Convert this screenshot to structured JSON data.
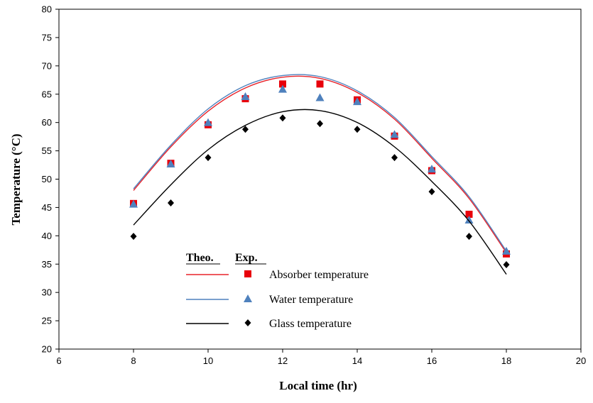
{
  "chart_data": {
    "type": "scatter",
    "title": "",
    "xlabel": "Local time (hr)",
    "ylabel": "Temperature (°C)",
    "xlim": [
      6,
      20
    ],
    "ylim": [
      20,
      80
    ],
    "xticks": [
      6,
      8,
      10,
      12,
      14,
      16,
      18,
      20
    ],
    "yticks": [
      20,
      25,
      30,
      35,
      40,
      45,
      50,
      55,
      60,
      65,
      70,
      75,
      80
    ],
    "grid": false,
    "legend": {
      "position": "bottom-left",
      "theo_header": "Theo.",
      "exp_header": "Exp."
    },
    "series": [
      {
        "name": "Absorber temperature",
        "line_color": "#e8232a",
        "marker_color": "#e8000b",
        "marker": "square",
        "theoretical": {
          "x": [
            8,
            9,
            10,
            11,
            12,
            13,
            14,
            15,
            16,
            17,
            18
          ],
          "y": [
            48.0,
            55.7,
            62.0,
            66.1,
            68.0,
            67.8,
            65.3,
            60.6,
            53.7,
            46.6,
            37.0
          ]
        },
        "experimental": {
          "x": [
            8,
            9,
            10,
            11,
            12,
            13,
            14,
            15,
            16,
            17,
            18
          ],
          "y": [
            45.7,
            52.8,
            59.6,
            64.2,
            66.8,
            66.8,
            64.0,
            57.6,
            51.5,
            43.8,
            36.8
          ]
        }
      },
      {
        "name": "Water temperature",
        "line_color": "#4f81bd",
        "marker_color": "#4f81bd",
        "marker": "triangle",
        "theoretical": {
          "x": [
            8,
            9,
            10,
            11,
            12,
            13,
            14,
            15,
            16,
            17,
            18
          ],
          "y": [
            48.3,
            56.0,
            62.4,
            66.5,
            68.3,
            68.1,
            65.6,
            60.9,
            54.0,
            46.9,
            37.3
          ]
        },
        "experimental": {
          "x": [
            8,
            9,
            10,
            11,
            12,
            13,
            14,
            15,
            16,
            17,
            18
          ],
          "y": [
            45.6,
            52.7,
            60.0,
            64.6,
            65.9,
            64.4,
            63.7,
            57.9,
            51.8,
            42.8,
            37.3
          ]
        }
      },
      {
        "name": "Glass temperature",
        "line_color": "#000000",
        "marker_color": "#000000",
        "marker": "diamond",
        "theoretical": {
          "x": [
            8,
            9,
            10,
            11,
            12,
            13,
            14,
            15,
            16,
            17,
            18
          ],
          "y": [
            41.9,
            49.0,
            55.2,
            59.5,
            61.9,
            62.1,
            60.0,
            55.7,
            49.6,
            42.6,
            33.2
          ]
        },
        "experimental": {
          "x": [
            8,
            9,
            10,
            11,
            12,
            13,
            14,
            15,
            16,
            17,
            18
          ],
          "y": [
            39.9,
            45.8,
            53.8,
            58.8,
            60.8,
            59.8,
            58.8,
            53.8,
            47.8,
            39.9,
            34.9
          ]
        }
      }
    ]
  }
}
